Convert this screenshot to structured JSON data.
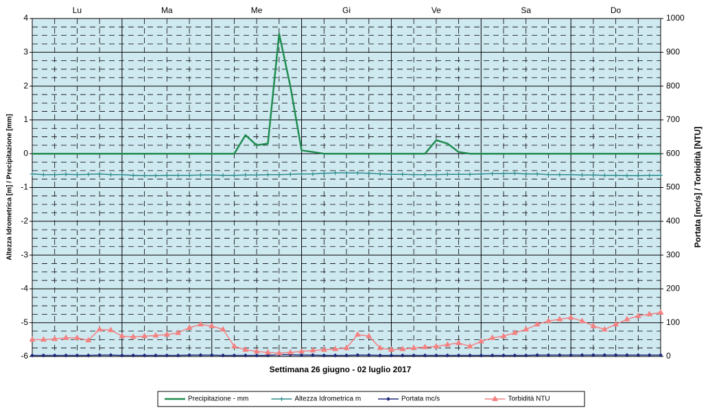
{
  "chart_data": {
    "type": "line",
    "xlabel": "Settimana   26 giugno - 02 luglio 2017",
    "ylabel": "Altezza Idrometrica [m] / Precipitazione [mm]",
    "y2label": "Portata [mc/s] / Torbidità [NTU]",
    "categories": [
      "Lu",
      "Ma",
      "Me",
      "Gi",
      "Ve",
      "Sa",
      "Do"
    ],
    "xlim": [
      0,
      7
    ],
    "x": [
      0,
      0.125,
      0.25,
      0.375,
      0.5,
      0.625,
      0.75,
      0.875,
      1,
      1.125,
      1.25,
      1.375,
      1.5,
      1.625,
      1.75,
      1.875,
      2,
      2.125,
      2.25,
      2.375,
      2.5,
      2.625,
      2.75,
      2.875,
      3,
      3.125,
      3.25,
      3.375,
      3.5,
      3.625,
      3.75,
      3.875,
      4,
      4.125,
      4.25,
      4.375,
      4.5,
      4.625,
      4.75,
      4.875,
      5,
      5.125,
      5.25,
      5.375,
      5.5,
      5.625,
      5.75,
      5.875,
      6,
      6.125,
      6.25,
      6.375,
      6.5,
      6.625,
      6.75,
      6.875,
      7
    ],
    "ylim": [
      -6,
      4
    ],
    "yticks": [
      -6,
      -5,
      -4,
      -3,
      -2,
      -1,
      0,
      1,
      2,
      3,
      4
    ],
    "y2lim": [
      0,
      1000
    ],
    "y2ticks": [
      0,
      100,
      200,
      300,
      400,
      500,
      600,
      700,
      800,
      900,
      1000
    ],
    "grid": true,
    "background": "#cfe9f1",
    "series": [
      {
        "name": "Precipitazione - mm",
        "color": "#1e8c4e",
        "marker": "none",
        "values": [
          0,
          0,
          0,
          0,
          0,
          0,
          0,
          0,
          0,
          0,
          0,
          0,
          0,
          0,
          0,
          0,
          0,
          0,
          0,
          0.55,
          0.25,
          0.3,
          3.55,
          2.0,
          0.1,
          0.05,
          0,
          0,
          0,
          0,
          0,
          0,
          0,
          0,
          0,
          0,
          0.4,
          0.3,
          0.05,
          0,
          0,
          0,
          0,
          0,
          0,
          0,
          0,
          0,
          0,
          0,
          0,
          0,
          0,
          0,
          0,
          0,
          0
        ]
      },
      {
        "name": "Altezza Idrometrica m",
        "color": "#2a8a8a",
        "marker": "plus",
        "values": [
          -0.6,
          -0.62,
          -0.62,
          -0.61,
          -0.62,
          -0.61,
          -0.6,
          -0.62,
          -0.62,
          -0.64,
          -0.65,
          -0.65,
          -0.64,
          -0.64,
          -0.64,
          -0.63,
          -0.63,
          -0.64,
          -0.64,
          -0.63,
          -0.63,
          -0.62,
          -0.62,
          -0.61,
          -0.6,
          -0.6,
          -0.58,
          -0.57,
          -0.57,
          -0.57,
          -0.58,
          -0.6,
          -0.61,
          -0.61,
          -0.62,
          -0.62,
          -0.62,
          -0.61,
          -0.61,
          -0.61,
          -0.6,
          -0.59,
          -0.59,
          -0.58,
          -0.6,
          -0.6,
          -0.62,
          -0.62,
          -0.62,
          -0.63,
          -0.63,
          -0.64,
          -0.64,
          -0.65,
          -0.65,
          -0.64,
          -0.64
        ]
      },
      {
        "name": "Portata mc/s",
        "color": "#1f2a7a",
        "marker": "diamond",
        "axis": "y2",
        "values": [
          3,
          3,
          3,
          3,
          3,
          3,
          4,
          4,
          3,
          3,
          3,
          3,
          3,
          3,
          4,
          4,
          4,
          3,
          3,
          3,
          3,
          3,
          5,
          5,
          4,
          4,
          3,
          3,
          3,
          4,
          4,
          3,
          3,
          3,
          3,
          3,
          3,
          3,
          3,
          3,
          3,
          3,
          3,
          3,
          3,
          4,
          4,
          4,
          4,
          4,
          4,
          4,
          4,
          4,
          4,
          4,
          4
        ]
      },
      {
        "name": "Torbidità NTU",
        "color": "#f48080",
        "marker": "triangle",
        "axis": "y2",
        "values": [
          50,
          50,
          52,
          55,
          55,
          48,
          80,
          78,
          60,
          58,
          60,
          62,
          65,
          70,
          85,
          95,
          90,
          80,
          30,
          20,
          15,
          12,
          10,
          12,
          15,
          18,
          20,
          22,
          25,
          65,
          60,
          25,
          20,
          22,
          25,
          28,
          30,
          35,
          40,
          30,
          45,
          55,
          60,
          70,
          80,
          95,
          105,
          110,
          115,
          105,
          90,
          80,
          95,
          110,
          120,
          125,
          130
        ]
      }
    ]
  }
}
